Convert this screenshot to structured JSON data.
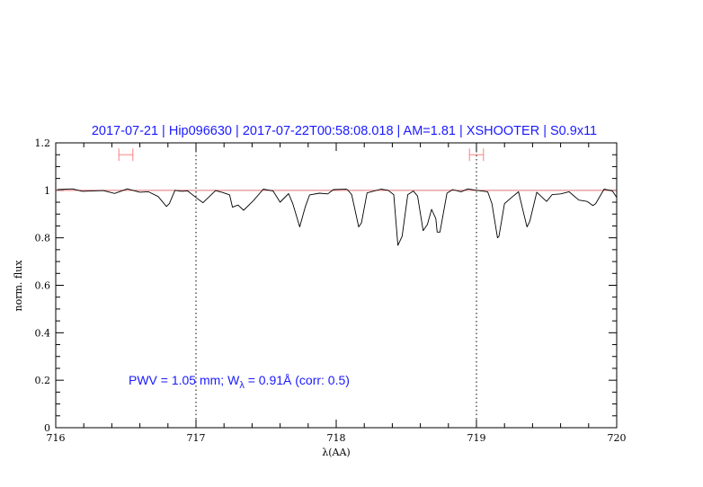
{
  "chart_data": {
    "type": "line",
    "title": "2017-07-21 | Hip096630 | 2017-07-22T00:58:08.018 | AM=1.81 | XSHOOTER | S0.9x11",
    "xlabel": "λ(AA)",
    "ylabel": "norm. flux",
    "xlim": [
      716,
      720
    ],
    "ylim": [
      0,
      1.2
    ],
    "xticks": [
      "716",
      "717",
      "718",
      "719",
      "720"
    ],
    "yticks": [
      "0",
      "0.2",
      "0.4",
      "0.6",
      "0.8",
      "1",
      "1.2"
    ],
    "grid": false,
    "reference_line": {
      "y": 1.0,
      "color": "#e07070"
    },
    "vertical_markers": [
      717,
      719
    ],
    "ranges": [
      {
        "x_from": 716.45,
        "x_to": 716.55,
        "y": 1.15,
        "color": "#ff8080"
      },
      {
        "x_from": 718.95,
        "x_to": 719.05,
        "y": 1.15,
        "color": "#ff8080"
      }
    ],
    "annotation": {
      "prefix": "PWV  =  1.05  mm;  W",
      "subscript": "λ",
      "suffix": "  =  0.91Å  (corr:  0.5)"
    },
    "series": [
      {
        "color": "#000000",
        "points": [
          [
            716.01,
            1.003
          ],
          [
            716.12,
            1.006
          ],
          [
            716.19,
            0.996
          ],
          [
            716.34,
            0.999
          ],
          [
            716.42,
            0.987
          ],
          [
            716.51,
            1.006
          ],
          [
            716.6,
            0.992
          ],
          [
            716.66,
            0.994
          ],
          [
            716.73,
            0.974
          ],
          [
            716.79,
            0.932
          ],
          [
            716.81,
            0.944
          ],
          [
            716.85,
            1.0
          ],
          [
            716.9,
            0.996
          ],
          [
            716.94,
            0.998
          ],
          [
            717.0,
            0.97
          ],
          [
            717.05,
            0.948
          ],
          [
            717.14,
            0.999
          ],
          [
            717.19,
            0.991
          ],
          [
            717.24,
            0.981
          ],
          [
            717.26,
            0.929
          ],
          [
            717.3,
            0.938
          ],
          [
            717.34,
            0.916
          ],
          [
            717.41,
            0.957
          ],
          [
            717.48,
            1.005
          ],
          [
            717.55,
            0.997
          ],
          [
            717.6,
            0.95
          ],
          [
            717.66,
            0.986
          ],
          [
            717.69,
            0.945
          ],
          [
            717.74,
            0.846
          ],
          [
            717.78,
            0.932
          ],
          [
            717.81,
            0.981
          ],
          [
            717.88,
            0.988
          ],
          [
            717.94,
            0.985
          ],
          [
            717.98,
            1.003
          ],
          [
            718.07,
            1.005
          ],
          [
            718.08,
            1.003
          ],
          [
            718.11,
            0.982
          ],
          [
            718.16,
            0.846
          ],
          [
            718.18,
            0.863
          ],
          [
            718.22,
            0.989
          ],
          [
            718.32,
            1.005
          ],
          [
            718.37,
            1.0
          ],
          [
            718.41,
            0.982
          ],
          [
            718.44,
            0.768
          ],
          [
            718.47,
            0.806
          ],
          [
            718.51,
            0.982
          ],
          [
            718.55,
            0.997
          ],
          [
            718.58,
            0.976
          ],
          [
            718.62,
            0.83
          ],
          [
            718.65,
            0.856
          ],
          [
            718.68,
            0.92
          ],
          [
            718.71,
            0.881
          ],
          [
            718.72,
            0.824
          ],
          [
            718.74,
            0.824
          ],
          [
            718.79,
            0.988
          ],
          [
            718.83,
            1.003
          ],
          [
            718.89,
            0.994
          ],
          [
            718.94,
            1.006
          ],
          [
            718.98,
            1.002
          ],
          [
            719.08,
            0.994
          ],
          [
            719.11,
            0.944
          ],
          [
            719.15,
            0.8
          ],
          [
            719.16,
            0.806
          ],
          [
            719.2,
            0.944
          ],
          [
            719.25,
            0.97
          ],
          [
            719.3,
            0.994
          ],
          [
            719.33,
            0.919
          ],
          [
            719.36,
            0.846
          ],
          [
            719.38,
            0.869
          ],
          [
            719.43,
            0.992
          ],
          [
            719.47,
            0.97
          ],
          [
            719.5,
            0.953
          ],
          [
            719.54,
            0.982
          ],
          [
            719.6,
            0.985
          ],
          [
            719.66,
            0.994
          ],
          [
            719.73,
            0.959
          ],
          [
            719.79,
            0.953
          ],
          [
            719.83,
            0.936
          ],
          [
            719.85,
            0.944
          ],
          [
            719.91,
            1.005
          ],
          [
            719.97,
            0.997
          ],
          [
            720.0,
            0.97
          ]
        ]
      }
    ]
  }
}
